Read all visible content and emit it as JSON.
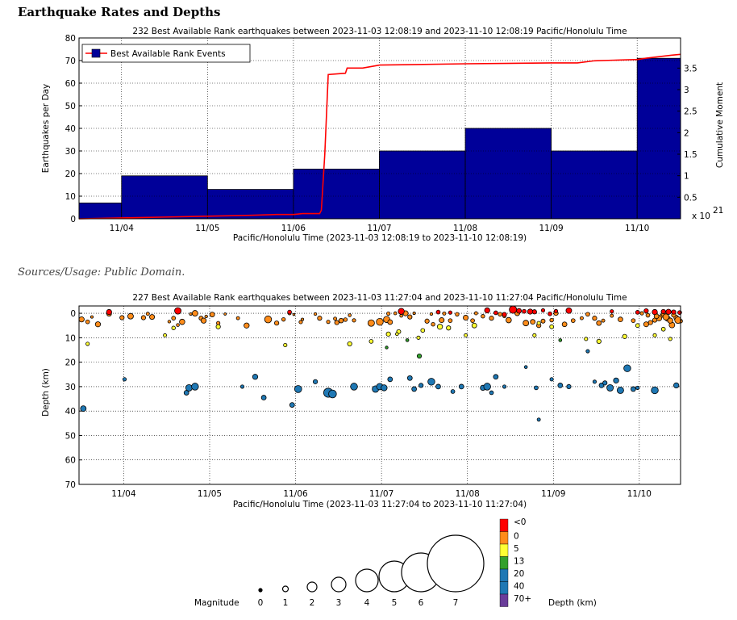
{
  "page": {
    "heading": "Earthquake Rates and Depths",
    "sources": "Sources/Usage: Public Domain."
  },
  "chart_data": [
    {
      "type": "bar",
      "title": "232 Best Available Rank earthquakes between 2023-11-03 12:08:19 and 2023-11-10 12:08:19 Pacific/Honolulu Time",
      "xlabel": "Pacific/Honolulu Time (2023-11-03 12:08:19 to 2023-11-10 12:08:19)",
      "ylabel": "Earthquakes per Day",
      "y2label": "Cumulative Moment",
      "y2_exponent": "x 10",
      "y2_exponent_power": "21",
      "xlim": [
        0,
        7
      ],
      "ylim": [
        0,
        80
      ],
      "y2lim": [
        0,
        4.2
      ],
      "yticks": [
        0,
        10,
        20,
        30,
        40,
        50,
        60,
        70,
        80
      ],
      "y2ticks": [
        {
          "value": 0.5,
          "label": "0.5"
        },
        {
          "value": 1,
          "label": "1"
        },
        {
          "value": 1.5,
          "label": "1.5"
        },
        {
          "value": 2,
          "label": "2"
        },
        {
          "value": 2.5,
          "label": "2.5"
        },
        {
          "value": 3,
          "label": "3"
        },
        {
          "value": 3.5,
          "label": "3.5"
        }
      ],
      "xticks": [
        {
          "value": 0.495,
          "label": "11/04"
        },
        {
          "value": 1.495,
          "label": "11/05"
        },
        {
          "value": 2.495,
          "label": "11/06"
        },
        {
          "value": 3.495,
          "label": "11/07"
        },
        {
          "value": 4.495,
          "label": "11/08"
        },
        {
          "value": 5.495,
          "label": "11/09"
        },
        {
          "value": 6.495,
          "label": "11/10"
        }
      ],
      "grid": true,
      "legend": {
        "label": "Best Available Rank Events",
        "position": "top-left"
      },
      "bars": [
        {
          "x0": 0,
          "x1": 0.495,
          "value": 7
        },
        {
          "x0": 0.495,
          "x1": 1.495,
          "value": 19
        },
        {
          "x0": 1.495,
          "x1": 2.495,
          "value": 13
        },
        {
          "x0": 2.495,
          "x1": 3.495,
          "value": 22
        },
        {
          "x0": 3.495,
          "x1": 4.495,
          "value": 30
        },
        {
          "x0": 4.495,
          "x1": 5.495,
          "value": 40
        },
        {
          "x0": 5.495,
          "x1": 6.495,
          "value": 30
        },
        {
          "x0": 6.495,
          "x1": 7,
          "value": 71
        }
      ],
      "cumulative_moment": [
        [
          0,
          0
        ],
        [
          0.5,
          0.02
        ],
        [
          1.0,
          0.04
        ],
        [
          1.5,
          0.06
        ],
        [
          2.0,
          0.08
        ],
        [
          2.3,
          0.1
        ],
        [
          2.5,
          0.1
        ],
        [
          2.6,
          0.12
        ],
        [
          2.8,
          0.12
        ],
        [
          2.82,
          0.2
        ],
        [
          2.86,
          1.5
        ],
        [
          2.9,
          3.35
        ],
        [
          3.1,
          3.38
        ],
        [
          3.12,
          3.5
        ],
        [
          3.3,
          3.5
        ],
        [
          3.5,
          3.57
        ],
        [
          4.5,
          3.6
        ],
        [
          5.5,
          3.62
        ],
        [
          5.8,
          3.62
        ],
        [
          6.0,
          3.67
        ],
        [
          6.5,
          3.7
        ],
        [
          6.6,
          3.73
        ],
        [
          6.9,
          3.8
        ],
        [
          7.0,
          3.82
        ]
      ],
      "colors": {
        "bar": "#000099",
        "line": "#ff0000"
      }
    },
    {
      "type": "scatter",
      "title": "227 Best Available Rank earthquakes between 2023-11-03 11:27:04 and 2023-11-10 11:27:04 Pacific/Honolulu Time",
      "xlabel": "Pacific/Honolulu Time (2023-11-03 11:27:04 to 2023-11-10 11:27:04)",
      "ylabel": "Depth (km)",
      "xlim": [
        0,
        7
      ],
      "ylim": [
        70,
        -3
      ],
      "yticks": [
        0,
        10,
        20,
        30,
        40,
        50,
        60,
        70
      ],
      "xticks": [
        {
          "value": 0.52,
          "label": "11/04"
        },
        {
          "value": 1.52,
          "label": "11/05"
        },
        {
          "value": 2.52,
          "label": "11/06"
        },
        {
          "value": 3.52,
          "label": "11/07"
        },
        {
          "value": 4.52,
          "label": "11/08"
        },
        {
          "value": 5.52,
          "label": "11/09"
        },
        {
          "value": 6.52,
          "label": "11/10"
        }
      ],
      "grid": true,
      "events": [
        [
          0.03,
          2.5,
          2.4
        ],
        [
          0.1,
          3.5,
          1.8
        ],
        [
          0.15,
          1.5,
          1.2
        ],
        [
          0.22,
          4.5,
          2.4
        ],
        [
          0.35,
          0.2,
          2.2
        ],
        [
          0.5,
          1.8,
          2.0
        ],
        [
          0.6,
          1.2,
          2.6
        ],
        [
          0.75,
          1.8,
          2.0
        ],
        [
          0.85,
          1.5,
          2.3
        ],
        [
          1.1,
          2.0,
          1.8
        ],
        [
          1.2,
          3.5,
          2.5
        ],
        [
          1.35,
          0,
          2.6
        ],
        [
          1.42,
          2.0,
          1.9
        ],
        [
          1.45,
          3.0,
          2.4
        ],
        [
          1.55,
          0.5,
          2.2
        ],
        [
          1.62,
          4.0,
          1.6
        ],
        [
          1.85,
          2.0,
          1.5
        ],
        [
          1.95,
          5.0,
          2.4
        ],
        [
          2.2,
          2.5,
          3.2
        ],
        [
          2.3,
          4.0,
          2.0
        ],
        [
          2.38,
          2.5,
          1.7
        ],
        [
          2.45,
          0.0,
          1.5
        ],
        [
          2.8,
          2.0,
          2.0
        ],
        [
          2.9,
          3.5,
          1.6
        ],
        [
          3.05,
          3.0,
          2.1
        ],
        [
          3.15,
          0.8,
          1.4
        ],
        [
          3.4,
          4.0,
          3.0
        ],
        [
          3.5,
          3.5,
          3.2
        ],
        [
          3.58,
          2.5,
          2.9
        ],
        [
          3.62,
          3.6,
          2.2
        ],
        [
          3.8,
          0,
          2.4
        ],
        [
          3.85,
          1.5,
          2.0
        ],
        [
          4.05,
          3.2,
          2.0
        ],
        [
          4.12,
          4.5,
          1.7
        ],
        [
          4.22,
          2.8,
          2.3
        ],
        [
          4.32,
          3.0,
          1.8
        ],
        [
          4.8,
          2.0,
          2.0
        ],
        [
          4.9,
          0.4,
          1.8
        ],
        [
          4.95,
          1.2,
          1.5
        ],
        [
          5.0,
          2.8,
          2.5
        ],
        [
          5.1,
          0,
          2.2
        ],
        [
          5.2,
          4.0,
          2.6
        ],
        [
          5.28,
          3.5,
          2.2
        ],
        [
          5.35,
          5.0,
          2.0
        ],
        [
          5.4,
          3.2,
          1.9
        ],
        [
          5.5,
          2.8,
          1.7
        ],
        [
          5.55,
          0,
          2.0
        ],
        [
          5.65,
          4.5,
          2.2
        ],
        [
          5.75,
          3.0,
          1.8
        ],
        [
          5.85,
          2.0,
          1.5
        ],
        [
          5.92,
          0.4,
          1.8
        ],
        [
          6.0,
          2.0,
          2.0
        ],
        [
          6.05,
          4.0,
          2.2
        ],
        [
          6.1,
          3.0,
          1.5
        ],
        [
          6.2,
          1.0,
          1.5
        ],
        [
          6.3,
          2.5,
          2.2
        ],
        [
          6.45,
          3.0,
          1.8
        ],
        [
          6.55,
          0,
          1.6
        ],
        [
          6.6,
          4.5,
          2.3
        ],
        [
          6.7,
          2.8,
          2.0
        ],
        [
          6.78,
          1.0,
          1.6
        ],
        [
          6.85,
          2.2,
          2.4
        ],
        [
          6.9,
          4.8,
          2.6
        ],
        [
          6.95,
          1.8,
          2.2
        ],
        [
          7.0,
          3.2,
          1.8
        ],
        [
          6.8,
          0.3,
          2.0
        ],
        [
          6.83,
          1.5,
          2.8
        ],
        [
          6.88,
          3.0,
          2.4
        ],
        [
          6.92,
          0.7,
          2.0
        ],
        [
          6.97,
          2.8,
          3.0
        ],
        [
          6.75,
          2.0,
          2.5
        ],
        [
          6.72,
          1.2,
          2.2
        ],
        [
          6.65,
          3.8,
          2.0
        ],
        [
          6.62,
          0.8,
          1.8
        ],
        [
          0.8,
          0.2,
          1.5
        ],
        [
          1.3,
          0.3,
          1.2
        ],
        [
          1.7,
          0.3,
          1.1
        ],
        [
          2.5,
          0.5,
          1.0
        ],
        [
          2.75,
          0.3,
          1.3
        ],
        [
          3.6,
          0.1,
          1.6
        ],
        [
          3.68,
          0,
          1.4
        ],
        [
          3.9,
          0,
          1.2
        ],
        [
          4.1,
          0.3,
          1.3
        ],
        [
          4.25,
          0.1,
          1.5
        ],
        [
          4.4,
          0.4,
          1.7
        ],
        [
          4.5,
          1.8,
          2.3
        ],
        [
          4.58,
          3.0,
          1.8
        ],
        [
          4.62,
          0,
          1.5
        ],
        [
          4.7,
          1.2,
          1.7
        ],
        [
          3.0,
          3.8,
          2.0
        ],
        [
          3.1,
          2.6,
          1.7
        ],
        [
          2.98,
          2.2,
          1.5
        ],
        [
          3.2,
          2.9,
          1.6
        ],
        [
          3.75,
          1.0,
          1.4
        ],
        [
          1.05,
          3.4,
          1.3
        ],
        [
          1.15,
          4.8,
          1.4
        ],
        [
          1.48,
          1.3,
          1.3
        ],
        [
          2.6,
          2.5,
          1.2
        ],
        [
          2.58,
          3.6,
          1.6
        ]
      ],
      "events_red": [
        [
          0.35,
          -0.5,
          2.4
        ],
        [
          1.15,
          -1.0,
          3.0
        ],
        [
          2.45,
          -0.5,
          1.8
        ],
        [
          3.75,
          -0.8,
          2.8
        ],
        [
          4.75,
          -1.2,
          2.4
        ],
        [
          4.85,
          -0.2,
          1.8
        ],
        [
          4.95,
          0.5,
          2.0
        ],
        [
          5.05,
          -1.5,
          3.4
        ],
        [
          5.12,
          -1.0,
          2.2
        ],
        [
          5.18,
          -0.8,
          1.8
        ],
        [
          5.25,
          -0.7,
          2.4
        ],
        [
          5.3,
          -0.6,
          2.0
        ],
        [
          5.4,
          -1.2,
          1.6
        ],
        [
          5.48,
          0.2,
          1.8
        ],
        [
          5.55,
          -0.9,
          1.6
        ],
        [
          5.7,
          -1.1,
          2.6
        ],
        [
          6.2,
          -0.8,
          1.6
        ],
        [
          6.5,
          -0.4,
          1.8
        ],
        [
          6.6,
          -1.0,
          2.0
        ],
        [
          6.7,
          -0.5,
          2.4
        ],
        [
          6.8,
          -0.7,
          2.0
        ],
        [
          6.86,
          -0.6,
          2.4
        ],
        [
          6.92,
          -0.5,
          2.0
        ],
        [
          6.99,
          -0.3,
          1.8
        ],
        [
          4.18,
          -0.5,
          1.8
        ],
        [
          4.32,
          -0.3,
          1.6
        ]
      ],
      "events_yellow": [
        [
          0.1,
          12.5,
          1.6
        ],
        [
          1.0,
          9.0,
          1.5
        ],
        [
          1.1,
          6.0,
          1.7
        ],
        [
          1.62,
          5.5,
          2.0
        ],
        [
          2.4,
          13.0,
          1.6
        ],
        [
          3.15,
          12.5,
          2.0
        ],
        [
          3.4,
          11.5,
          1.8
        ],
        [
          3.6,
          8.5,
          2.0
        ],
        [
          3.72,
          7.5,
          1.9
        ],
        [
          4.0,
          7.0,
          1.8
        ],
        [
          4.2,
          5.5,
          2.4
        ],
        [
          4.3,
          6.0,
          2.0
        ],
        [
          4.5,
          9.0,
          1.5
        ],
        [
          4.6,
          5.0,
          2.2
        ],
        [
          5.3,
          9.0,
          1.6
        ],
        [
          5.35,
          4.0,
          1.6
        ],
        [
          5.5,
          5.5,
          1.8
        ],
        [
          5.9,
          10.5,
          1.6
        ],
        [
          6.05,
          11.5,
          2.0
        ],
        [
          6.35,
          9.5,
          2.0
        ],
        [
          6.5,
          5.0,
          1.8
        ],
        [
          6.7,
          9.0,
          1.6
        ],
        [
          6.8,
          6.5,
          1.8
        ],
        [
          6.88,
          10.5,
          1.6
        ],
        [
          3.95,
          10.0,
          1.6
        ],
        [
          3.7,
          8.5,
          1.4
        ]
      ],
      "events_green": [
        [
          3.96,
          17.5,
          2.0
        ],
        [
          3.82,
          11.0,
          1.4
        ],
        [
          3.58,
          14.0,
          1.3
        ],
        [
          5.6,
          11.0,
          1.4
        ]
      ],
      "events_blue": [
        [
          0.05,
          39.0,
          2.6
        ],
        [
          0.53,
          27.0,
          1.6
        ],
        [
          1.25,
          32.5,
          2.2
        ],
        [
          1.28,
          30.5,
          3.0
        ],
        [
          1.35,
          30.0,
          3.2
        ],
        [
          1.9,
          30.0,
          1.6
        ],
        [
          2.05,
          26.0,
          2.4
        ],
        [
          2.15,
          34.5,
          2.2
        ],
        [
          2.48,
          37.5,
          2.2
        ],
        [
          2.55,
          31.0,
          3.3
        ],
        [
          2.75,
          28.0,
          2.0
        ],
        [
          2.9,
          32.5,
          4.2
        ],
        [
          2.95,
          33.0,
          3.6
        ],
        [
          3.2,
          30.0,
          3.2
        ],
        [
          3.45,
          31.0,
          3.0
        ],
        [
          3.5,
          30.0,
          3.0
        ],
        [
          3.55,
          30.5,
          2.8
        ],
        [
          3.62,
          27.0,
          2.2
        ],
        [
          3.85,
          26.5,
          2.2
        ],
        [
          3.9,
          31.0,
          2.2
        ],
        [
          3.98,
          29.5,
          2.0
        ],
        [
          4.1,
          28.0,
          3.2
        ],
        [
          4.18,
          30.0,
          2.2
        ],
        [
          4.35,
          32.0,
          1.8
        ],
        [
          4.45,
          30.0,
          2.2
        ],
        [
          4.7,
          30.5,
          2.4
        ],
        [
          4.75,
          30.0,
          3.2
        ],
        [
          4.8,
          32.5,
          1.8
        ],
        [
          4.85,
          26.0,
          2.2
        ],
        [
          4.95,
          30.0,
          1.6
        ],
        [
          5.5,
          27.0,
          1.6
        ],
        [
          5.6,
          29.5,
          2.2
        ],
        [
          5.7,
          30.0,
          2.0
        ],
        [
          5.92,
          15.5,
          1.6
        ],
        [
          6.0,
          28.0,
          1.6
        ],
        [
          6.08,
          29.5,
          2.2
        ],
        [
          6.12,
          28.5,
          2.0
        ],
        [
          6.18,
          30.5,
          3.0
        ],
        [
          6.25,
          27.5,
          2.4
        ],
        [
          6.3,
          31.5,
          3.0
        ],
        [
          6.38,
          22.5,
          3.2
        ],
        [
          6.45,
          31.0,
          2.2
        ],
        [
          6.5,
          30.5,
          1.6
        ],
        [
          6.7,
          31.5,
          3.2
        ],
        [
          6.95,
          29.5,
          2.4
        ],
        [
          5.35,
          43.5,
          1.5
        ],
        [
          5.32,
          30.5,
          1.8
        ],
        [
          5.2,
          22.0,
          1.4
        ]
      ],
      "colors": {
        "red": "#ff0000",
        "orange": "#ff8c1a",
        "yellow": "#ffff33",
        "green": "#33a02c",
        "blue": "#1f78b4",
        "purple": "#6a3d9a"
      }
    }
  ],
  "legend": {
    "magnitude_label": "Magnitude",
    "magnitudes": [
      "0",
      "1",
      "2",
      "3",
      "4",
      "5",
      "6",
      "7"
    ],
    "depth_label": "Depth (km)",
    "depth_items": [
      {
        "label": "<0",
        "color": "#ff0000"
      },
      {
        "label": "0",
        "color": "#ff8c1a"
      },
      {
        "label": "5",
        "color": "#ffff33"
      },
      {
        "label": "13",
        "color": "#33a02c"
      },
      {
        "label": "20",
        "color": "#1f78b4"
      },
      {
        "label": "40",
        "color": "#1f78b4"
      },
      {
        "label": "70+",
        "color": "#6a3d9a"
      }
    ]
  }
}
